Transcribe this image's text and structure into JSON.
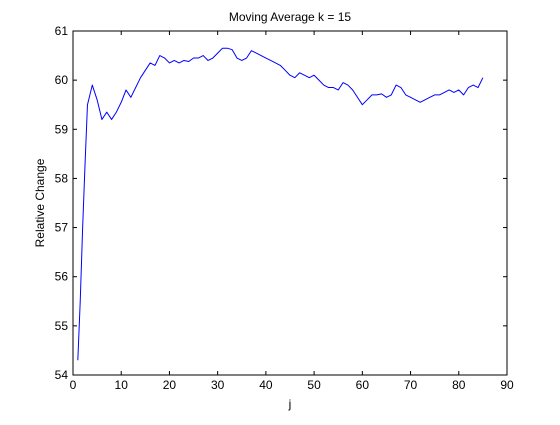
{
  "chart_data": {
    "type": "line",
    "title": "Moving Average k = 15",
    "xlabel": "j",
    "ylabel": "Relative Change",
    "xlim": [
      0,
      90
    ],
    "ylim": [
      54,
      61
    ],
    "xticks": [
      0,
      10,
      20,
      30,
      40,
      50,
      60,
      70,
      80,
      90
    ],
    "yticks": [
      54,
      55,
      56,
      57,
      58,
      59,
      60,
      61
    ],
    "grid": false,
    "legend": "none",
    "line_color": "#0000ff",
    "series": [
      {
        "x": [
          1,
          1.5,
          2,
          2.5,
          3,
          4,
          5,
          6,
          7,
          8,
          9,
          10,
          11,
          12,
          13,
          14,
          15,
          16,
          17,
          18,
          19,
          20,
          21,
          22,
          23,
          24,
          25,
          26,
          27,
          28,
          29,
          30,
          31,
          32,
          33,
          34,
          35,
          36,
          37,
          38,
          39,
          40,
          41,
          42,
          43,
          44,
          45,
          46,
          47,
          48,
          49,
          50,
          51,
          52,
          53,
          54,
          55,
          56,
          57,
          58,
          59,
          60,
          61,
          62,
          63,
          64,
          65,
          66,
          67,
          68,
          69,
          70,
          71,
          72,
          73,
          74,
          75,
          76,
          77,
          78,
          79,
          80,
          81,
          82,
          83,
          84,
          85
        ],
        "y": [
          54.3,
          55.5,
          57.0,
          58.3,
          59.5,
          59.9,
          59.6,
          59.2,
          59.35,
          59.2,
          59.35,
          59.55,
          59.8,
          59.65,
          59.85,
          60.05,
          60.2,
          60.35,
          60.3,
          60.5,
          60.45,
          60.35,
          60.4,
          60.35,
          60.4,
          60.38,
          60.45,
          60.45,
          60.5,
          60.4,
          60.45,
          60.55,
          60.65,
          60.65,
          60.62,
          60.45,
          60.4,
          60.45,
          60.6,
          60.55,
          60.5,
          60.45,
          60.4,
          60.35,
          60.3,
          60.2,
          60.1,
          60.05,
          60.15,
          60.1,
          60.05,
          60.1,
          60.0,
          59.9,
          59.85,
          59.85,
          59.8,
          59.95,
          59.9,
          59.8,
          59.65,
          59.5,
          59.6,
          59.7,
          59.7,
          59.72,
          59.65,
          59.7,
          59.9,
          59.85,
          59.7,
          59.65,
          59.6,
          59.55,
          59.6,
          59.65,
          59.7,
          59.7,
          59.75,
          59.8,
          59.75,
          59.8,
          59.7,
          59.85,
          59.9,
          59.85,
          60.05
        ]
      }
    ]
  }
}
